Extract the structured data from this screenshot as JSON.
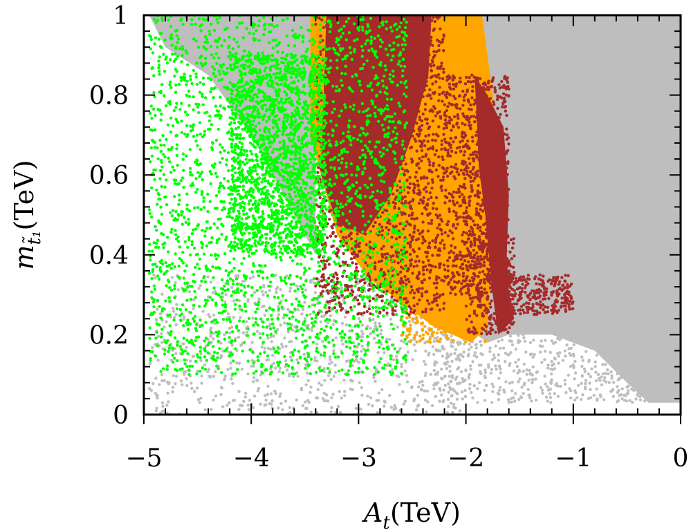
{
  "chart_data": {
    "type": "scatter",
    "title": "",
    "xlabel": {
      "symbol": "A",
      "sub": "t",
      "unit": "(TeV)"
    },
    "ylabel": {
      "symbol": "m",
      "sub": "t̃₁",
      "unit": "(TeV)"
    },
    "xlim": [
      -5,
      0
    ],
    "ylim": [
      0,
      1
    ],
    "x_ticks": [
      -5,
      -4,
      -3,
      -2,
      -1,
      0
    ],
    "x_tick_labels": [
      "−5",
      "−4",
      "−3",
      "−2",
      "−1",
      "0"
    ],
    "y_ticks": [
      0,
      0.2,
      0.4,
      0.6,
      0.8,
      1
    ],
    "y_tick_labels": [
      "0",
      "0.2",
      "0.4",
      "0.6",
      "0.8",
      "1"
    ],
    "grid": false,
    "legend": "none",
    "series": [
      {
        "color": "#bebebe",
        "regions": [
          {
            "polygon": [
              [
                -1.85,
                1.0
              ],
              [
                0.0,
                1.0
              ],
              [
                0.0,
                0.03
              ],
              [
                -0.3,
                0.03
              ],
              [
                -0.5,
                0.08
              ],
              [
                -0.8,
                0.16
              ],
              [
                -1.2,
                0.2
              ],
              [
                -1.6,
                0.2
              ],
              [
                -1.8,
                0.18
              ],
              [
                -1.9,
                0.2
              ],
              [
                -1.75,
                0.5
              ],
              [
                -1.7,
                0.7
              ],
              [
                -1.85,
                0.9
              ]
            ]
          },
          {
            "polygon": [
              [
                -4.95,
                1.0
              ],
              [
                -3.4,
                1.0
              ],
              [
                -3.4,
                0.4
              ],
              [
                -3.6,
                0.5
              ],
              [
                -4.0,
                0.7
              ],
              [
                -4.4,
                0.85
              ],
              [
                -4.8,
                0.92
              ]
            ]
          }
        ],
        "scatter": [
          {
            "x": [
              -4.95,
              -2.0
            ],
            "y": [
              0.0,
              0.35
            ],
            "n": 900,
            "seed": 11
          },
          {
            "x": [
              -2.3,
              -0.3
            ],
            "y": [
              0.03,
              0.2
            ],
            "n": 500,
            "seed": 12
          }
        ]
      },
      {
        "color": "#ffa500",
        "regions": [
          {
            "polygon": [
              [
                -3.45,
                1.0
              ],
              [
                -1.85,
                1.0
              ],
              [
                -1.75,
                0.8
              ],
              [
                -1.7,
                0.6
              ],
              [
                -1.75,
                0.4
              ],
              [
                -1.8,
                0.22
              ],
              [
                -1.95,
                0.18
              ],
              [
                -2.3,
                0.22
              ],
              [
                -2.6,
                0.28
              ],
              [
                -2.9,
                0.34
              ],
              [
                -3.2,
                0.45
              ],
              [
                -3.45,
                0.7
              ]
            ]
          }
        ],
        "scatter": [
          {
            "x": [
              -2.6,
              -1.8
            ],
            "y": [
              0.18,
              0.45
            ],
            "n": 500,
            "seed": 21
          }
        ]
      },
      {
        "color": "#a52a2a",
        "regions": [
          {
            "polygon": [
              [
                -3.3,
                1.0
              ],
              [
                -2.32,
                1.0
              ],
              [
                -2.35,
                0.85
              ],
              [
                -2.5,
                0.7
              ],
              [
                -2.7,
                0.55
              ],
              [
                -2.95,
                0.45
              ],
              [
                -3.2,
                0.48
              ],
              [
                -3.35,
                0.6
              ]
            ]
          },
          {
            "polygon": [
              [
                -1.92,
                0.85
              ],
              [
                -1.8,
                0.8
              ],
              [
                -1.65,
                0.72
              ],
              [
                -1.6,
                0.55
              ],
              [
                -1.62,
                0.4
              ],
              [
                -1.6,
                0.3
              ],
              [
                -1.55,
                0.24
              ],
              [
                -1.7,
                0.2
              ],
              [
                -1.75,
                0.3
              ],
              [
                -1.82,
                0.5
              ],
              [
                -1.88,
                0.62
              ],
              [
                -1.9,
                0.75
              ]
            ]
          }
        ],
        "scatter": [
          {
            "x": [
              -3.4,
              -2.2
            ],
            "y": [
              0.25,
              1.0
            ],
            "n": 1800,
            "seed": 31
          },
          {
            "x": [
              -2.2,
              -1.6
            ],
            "y": [
              0.3,
              0.85
            ],
            "n": 900,
            "seed": 32
          },
          {
            "x": [
              -1.7,
              -1.0
            ],
            "y": [
              0.25,
              0.35
            ],
            "n": 300,
            "seed": 33
          },
          {
            "x": [
              -2.0,
              -1.55
            ],
            "y": [
              0.2,
              0.45
            ],
            "n": 300,
            "seed": 34
          }
        ]
      },
      {
        "color": "#00ff00",
        "scatter": [
          {
            "x": [
              -4.95,
              -2.55
            ],
            "y": [
              0.1,
              1.0
            ],
            "n": 2600,
            "seed": 41
          },
          {
            "x": [
              -4.2,
              -3.3
            ],
            "y": [
              0.4,
              0.9
            ],
            "n": 1600,
            "seed": 42
          }
        ]
      }
    ]
  }
}
